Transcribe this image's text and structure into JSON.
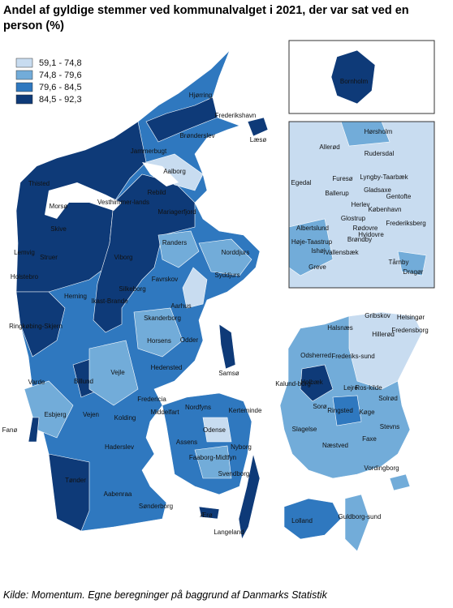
{
  "title": "Andel af gyldige stemmer ved kommunalvalget i 2021, der var sat ved en person (%)",
  "legend": [
    {
      "label": "59,1 - 74,8",
      "color": "#c8dcf0"
    },
    {
      "label": "74,8 - 79,6",
      "color": "#72acd9"
    },
    {
      "label": "79,6 - 84,5",
      "color": "#2f78bf"
    },
    {
      "label": "84,5 - 92,3",
      "color": "#0e3a78"
    }
  ],
  "labels": [
    "Hjørring",
    "Frederikshavn",
    "Læsø",
    "Brønderslev",
    "Jammerbugt",
    "Aalborg",
    "Thisted",
    "Vesthimmer-lands",
    "Rebild",
    "Mariagerfjord",
    "Morsø",
    "Skive",
    "Lemvig",
    "Struer",
    "Viborg",
    "Randers",
    "Norddjurs",
    "Holstebro",
    "Favrskov",
    "Syddjurs",
    "Silkeborg",
    "Herning",
    "Ikast-Brande",
    "Aarhus",
    "Skanderborg",
    "Ringkøbing-Skjern",
    "Horsens",
    "Odder",
    "Hedensted",
    "Vejle",
    "Samsø",
    "Billund",
    "Varde",
    "Fredericia",
    "Middelfart",
    "Nordfyns",
    "Kerteminde",
    "Esbjerg",
    "Vejen",
    "Kolding",
    "Fanø",
    "Odense",
    "Assens",
    "Nyborg",
    "Haderslev",
    "Faaborg-Midtfyn",
    "Svendborg",
    "Tønder",
    "Aabenraa",
    "Sønderborg",
    "Ærø",
    "Langeland",
    "Lolland",
    "Guldborg-sund",
    "Vordingborg",
    "Næstved",
    "Faxe",
    "Stevns",
    "Køge",
    "Ringsted",
    "Sorø",
    "Slagelse",
    "Kalund-borg",
    "Holbæk",
    "Odsherred",
    "Lejre",
    "Ros-kilde",
    "Solrød",
    "Gribskov",
    "Helsingør",
    "Halsnæs",
    "Hillerød",
    "Fredensborg",
    "Frederiks-sund",
    "Bornholm"
  ],
  "inset_labels": [
    "Hørsholm",
    "Allerød",
    "Rudersdal",
    "Egedal",
    "Furesø",
    "Lyngby-Taarbæk",
    "Ballerup",
    "Gladsaxe",
    "Gentofte",
    "Herlev",
    "København",
    "Albertslund",
    "Glostrup",
    "Rødovre",
    "Frederiksberg",
    "Hvidovre",
    "Brøndby",
    "Høje-Taastrup",
    "Ishøj",
    "Vallensbæk",
    "Tårnby",
    "Greve",
    "Dragør"
  ],
  "source": "Kilde: Momentum. Egne beregninger på baggrund af Danmarks Statistik"
}
